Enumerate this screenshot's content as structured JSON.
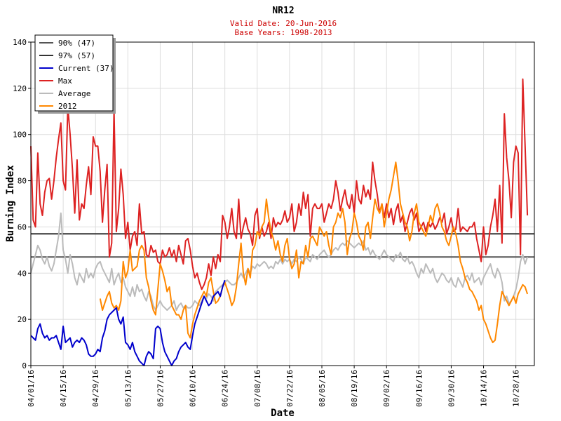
{
  "colors": {
    "background": "#ffffff",
    "grid": "#dddddd",
    "subtitle": "#cc0000",
    "p90": "#555555",
    "p97": "#333333",
    "current": "#0000cc",
    "max": "#dd2222",
    "average": "#bbbbbb",
    "y2012": "#ff8800"
  },
  "chart_data": {
    "type": "line",
    "title": "NR12",
    "subtitle_lines": [
      "Valid Date: 20-Jun-2016",
      "Base Years: 1998-2013"
    ],
    "xlabel": "Date",
    "ylabel": "Burning Index",
    "ylim": [
      0,
      140
    ],
    "y_ticks": [
      "0",
      "20",
      "40",
      "60",
      "80",
      "100",
      "120",
      "140"
    ],
    "x_range_days": [
      0,
      218
    ],
    "x_ticks": [
      {
        "day": 0,
        "label": "04/01/16"
      },
      {
        "day": 14,
        "label": "04/15/16"
      },
      {
        "day": 28,
        "label": "04/29/16"
      },
      {
        "day": 42,
        "label": "05/13/16"
      },
      {
        "day": 56,
        "label": "05/27/16"
      },
      {
        "day": 70,
        "label": "06/10/16"
      },
      {
        "day": 84,
        "label": "06/24/16"
      },
      {
        "day": 98,
        "label": "07/08/16"
      },
      {
        "day": 112,
        "label": "07/22/16"
      },
      {
        "day": 126,
        "label": "08/05/16"
      },
      {
        "day": 140,
        "label": "08/19/16"
      },
      {
        "day": 154,
        "label": "09/02/16"
      },
      {
        "day": 168,
        "label": "09/16/16"
      },
      {
        "day": 182,
        "label": "09/30/16"
      },
      {
        "day": 196,
        "label": "10/14/16"
      },
      {
        "day": 210,
        "label": "10/28/16"
      }
    ],
    "thresholds": [
      {
        "name": "90% (47)",
        "value": 47,
        "color": "#555555"
      },
      {
        "name": "97% (57)",
        "value": 57,
        "color": "#333333"
      }
    ],
    "legend": [
      {
        "name": "90% (47)",
        "color": "#555555"
      },
      {
        "name": "97% (57)",
        "color": "#333333"
      },
      {
        "name": "Current (37)",
        "color": "#0000cc"
      },
      {
        "name": "Max",
        "color": "#dd2222"
      },
      {
        "name": "Average",
        "color": "#bbbbbb"
      },
      {
        "name": "2012",
        "color": "#ff8800"
      }
    ],
    "series": [
      {
        "name": "Max",
        "color": "#dd2222",
        "x0": 0,
        "values": [
          95,
          63,
          60,
          92,
          70,
          65,
          75,
          80,
          81,
          72,
          80,
          90,
          98,
          105,
          80,
          76,
          112,
          100,
          85,
          66,
          89,
          63,
          70,
          68,
          78,
          86,
          74,
          99,
          95,
          95,
          84,
          62,
          76,
          87,
          47,
          53,
          111,
          58,
          68,
          85,
          74,
          55,
          62,
          50,
          56,
          58,
          52,
          70,
          57,
          58,
          48,
          47,
          52,
          49,
          50,
          45,
          44,
          50,
          47,
          48,
          51,
          47,
          50,
          45,
          52,
          48,
          44,
          54,
          55,
          50,
          43,
          38,
          40,
          36,
          33,
          35,
          38,
          44,
          39,
          47,
          42,
          48,
          45,
          65,
          62,
          55,
          60,
          68,
          58,
          55,
          72,
          55,
          60,
          64,
          59,
          57,
          52,
          65,
          68,
          55,
          60,
          56,
          58,
          62,
          55,
          64,
          60,
          62,
          61,
          63,
          67,
          62,
          64,
          70,
          58,
          62,
          70,
          65,
          75,
          68,
          74,
          56,
          68,
          70,
          68,
          68,
          70,
          62,
          66,
          70,
          68,
          72,
          80,
          75,
          67,
          72,
          76,
          70,
          68,
          74,
          66,
          80,
          72,
          70,
          78,
          73,
          76,
          72,
          88,
          80,
          74,
          66,
          70,
          64,
          70,
          64,
          68,
          61,
          67,
          70,
          62,
          65,
          58,
          62,
          66,
          68,
          63,
          66,
          58,
          60,
          62,
          58,
          62,
          60,
          62,
          59,
          61,
          64,
          62,
          66,
          57,
          60,
          64,
          58,
          59,
          68,
          58,
          60,
          59,
          58,
          60,
          60,
          62,
          55,
          50,
          45,
          60,
          48,
          52,
          60,
          65,
          72,
          58,
          78,
          53,
          109,
          90,
          80,
          64,
          88,
          95,
          92,
          48,
          124,
          95,
          65
        ]
      },
      {
        "name": "2012",
        "color": "#ff8800",
        "x0": 30,
        "values": [
          29,
          24,
          27,
          30,
          32,
          27,
          25,
          26,
          24,
          28,
          45,
          38,
          41,
          50,
          41,
          42,
          43,
          50,
          52,
          50,
          38,
          34,
          28,
          24,
          22,
          33,
          44,
          41,
          37,
          32,
          34,
          26,
          24,
          22,
          22,
          20,
          24,
          26,
          14,
          12,
          18,
          22,
          25,
          28,
          30,
          32,
          30,
          36,
          38,
          32,
          27,
          28,
          30,
          34,
          36,
          33,
          30,
          26,
          28,
          34,
          44,
          53,
          40,
          35,
          42,
          38,
          50,
          52,
          58,
          56,
          60,
          62,
          72,
          64,
          58,
          55,
          50,
          54,
          48,
          45,
          52,
          55,
          46,
          42,
          44,
          50,
          38,
          45,
          44,
          52,
          47,
          55,
          56,
          54,
          52,
          60,
          58,
          56,
          58,
          52,
          48,
          60,
          62,
          66,
          64,
          68,
          62,
          48,
          55,
          58,
          66,
          62,
          56,
          54,
          50,
          60,
          62,
          55,
          64,
          72,
          68,
          66,
          70,
          60,
          66,
          72,
          76,
          82,
          88,
          80,
          70,
          66,
          62,
          60,
          54,
          58,
          66,
          70,
          62,
          60,
          58,
          56,
          60,
          65,
          62,
          68,
          70,
          66,
          60,
          58,
          54,
          52,
          56,
          60,
          57,
          52,
          45,
          42,
          38,
          36,
          33,
          32,
          30,
          28,
          24,
          26,
          20,
          18,
          15,
          12,
          10,
          11,
          18,
          26,
          32,
          30,
          28,
          26,
          28,
          30,
          27,
          31,
          33,
          35,
          34,
          31
        ]
      },
      {
        "name": "Average",
        "color": "#bbbbbb",
        "x0": 0,
        "values": [
          40,
          44,
          48,
          52,
          50,
          46,
          44,
          47,
          43,
          41,
          44,
          50,
          56,
          66,
          50,
          46,
          40,
          48,
          44,
          38,
          35,
          40,
          38,
          36,
          42,
          38,
          40,
          38,
          42,
          44,
          45,
          42,
          40,
          38,
          36,
          42,
          35,
          38,
          40,
          36,
          38,
          34,
          32,
          30,
          34,
          30,
          35,
          32,
          33,
          30,
          28,
          32,
          30,
          26,
          24,
          26,
          28,
          26,
          25,
          24,
          25,
          26,
          28,
          24,
          26,
          27,
          25,
          26,
          25,
          25,
          26,
          28,
          27,
          26,
          28,
          30,
          29,
          31,
          30,
          28,
          32,
          33,
          34,
          35,
          36,
          37,
          36,
          35,
          35,
          36,
          38,
          40,
          38,
          40,
          42,
          40,
          43,
          42,
          44,
          43,
          44,
          45,
          44,
          42,
          43,
          42,
          45,
          44,
          46,
          44,
          46,
          45,
          46,
          44,
          46,
          45,
          47,
          46,
          44,
          47,
          46,
          45,
          48,
          47,
          46,
          48,
          49,
          50,
          48,
          47,
          48,
          50,
          51,
          50,
          52,
          53,
          52,
          54,
          53,
          52,
          51,
          52,
          53,
          52,
          54,
          50,
          51,
          48,
          50,
          48,
          47,
          46,
          48,
          50,
          48,
          47,
          46,
          45,
          48,
          47,
          49,
          46,
          45,
          47,
          44,
          45,
          43,
          40,
          38,
          42,
          40,
          44,
          42,
          40,
          42,
          38,
          36,
          38,
          40,
          39,
          37,
          36,
          38,
          35,
          34,
          38,
          36,
          34,
          38,
          39,
          37,
          40,
          36,
          37,
          38,
          35,
          38,
          40,
          42,
          44,
          40,
          38,
          42,
          40,
          36,
          28,
          30,
          27,
          28,
          30,
          33,
          38,
          45,
          48,
          44,
          47
        ]
      },
      {
        "name": "Current (37)",
        "color": "#0000cc",
        "x0": 0,
        "values": [
          13,
          12,
          11,
          16,
          18,
          14,
          12,
          13,
          11,
          12,
          12,
          13,
          10,
          7,
          17,
          10,
          11,
          12,
          8,
          10,
          11,
          10,
          12,
          11,
          9,
          5,
          4,
          4,
          5,
          7,
          6,
          12,
          15,
          20,
          22,
          23,
          24,
          25,
          20,
          18,
          21,
          10,
          9,
          7,
          10,
          6,
          4,
          2,
          1,
          0,
          4,
          6,
          5,
          3,
          16,
          17,
          16,
          10,
          6,
          4,
          2,
          0,
          2,
          3,
          6,
          8,
          9,
          10,
          8,
          7,
          13,
          18,
          21,
          24,
          27,
          30,
          28,
          26,
          27,
          30,
          31,
          32,
          30,
          34,
          37
        ]
      }
    ]
  }
}
